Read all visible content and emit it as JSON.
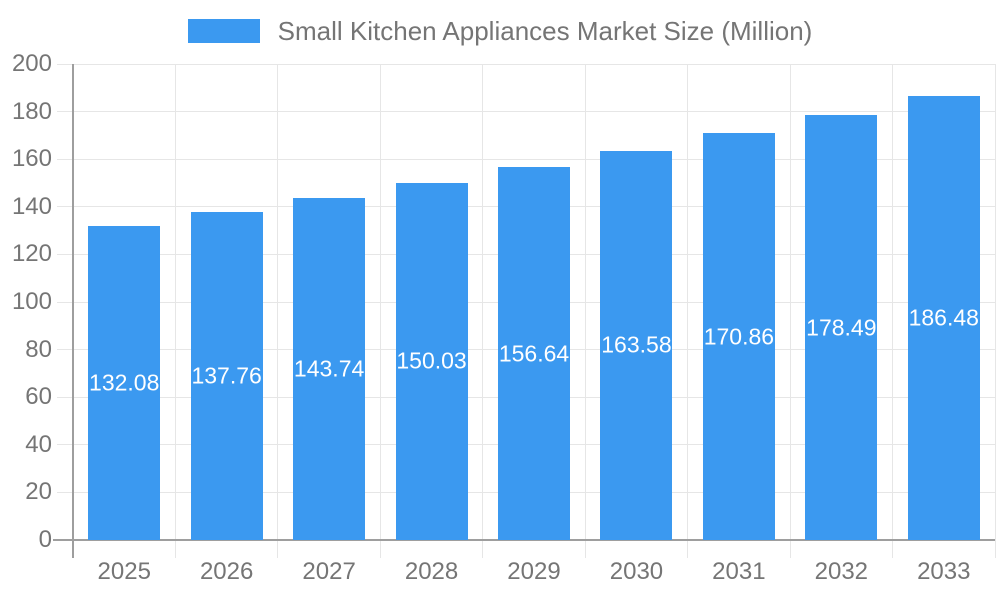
{
  "chart_data": {
    "type": "bar",
    "title": "Small Kitchen Appliances Market Size (Million)",
    "legend": {
      "position": "top",
      "entries": [
        "Small Kitchen Appliances Market Size (Million)"
      ]
    },
    "categories": [
      "2025",
      "2026",
      "2027",
      "2028",
      "2029",
      "2030",
      "2031",
      "2032",
      "2033"
    ],
    "series": [
      {
        "name": "Small Kitchen Appliances Market Size (Million)",
        "values": [
          132.08,
          137.76,
          143.74,
          150.03,
          156.64,
          163.58,
          170.86,
          178.49,
          186.48
        ]
      }
    ],
    "value_labels": [
      "132.08",
      "137.76",
      "143.74",
      "150.03",
      "156.64",
      "163.58",
      "170.86",
      "178.49",
      "186.48"
    ],
    "value_label_position": "inside-center",
    "xlabel": "",
    "ylabel": "",
    "ylim": [
      0,
      200
    ],
    "y_ticks": [
      0,
      20,
      40,
      60,
      80,
      100,
      120,
      140,
      160,
      180,
      200
    ],
    "grid": true,
    "colors": {
      "bar": "#3B99F0",
      "grid": "#e6e6e6",
      "axis": "#9e9e9e",
      "tick_label": "#757575",
      "value_label": "#ffffff",
      "legend_label": "#757575"
    }
  }
}
